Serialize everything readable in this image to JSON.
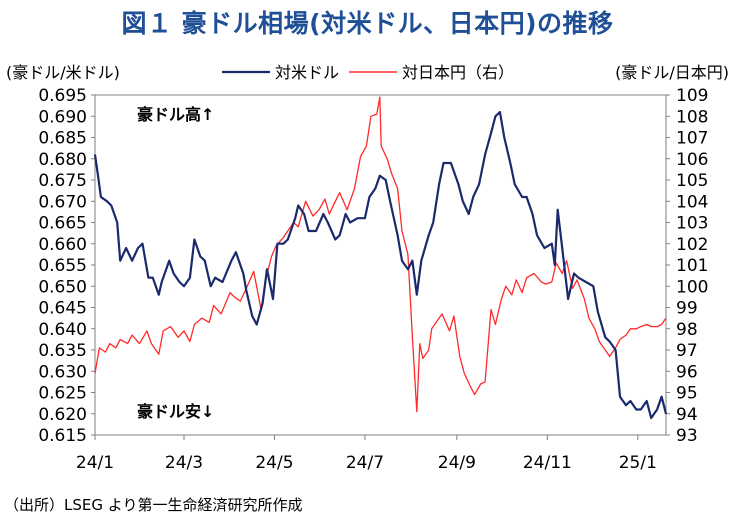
{
  "title": "図１ 豪ドル相場(対米ドル、日本円)の推移",
  "source": "（出所）LSEG より第一生命経済研究所作成",
  "colors": {
    "title": "#1f4f96",
    "usd_series": "#1a2a6c",
    "jpy_series": "#ff2a2a",
    "axis": "#808080"
  },
  "chart_data": {
    "type": "line",
    "title": "図１ 豪ドル相場(対米ドル、日本円)の推移",
    "left_axis_label": "(豪ドル/米ドル)",
    "right_axis_label": "(豪ドル/日本円)",
    "legend_placement": "top",
    "grid": false,
    "x_ticks": [
      "24/1",
      "24/3",
      "24/5",
      "24/7",
      "24/9",
      "24/11",
      "25/1"
    ],
    "x_range": [
      "2024-01-01",
      "2025-01-20"
    ],
    "left_ylim": [
      0.615,
      0.695
    ],
    "left_ticks": [
      "0.695",
      "0.690",
      "0.685",
      "0.680",
      "0.675",
      "0.670",
      "0.665",
      "0.660",
      "0.655",
      "0.650",
      "0.645",
      "0.640",
      "0.635",
      "0.630",
      "0.625",
      "0.620",
      "0.615"
    ],
    "right_ylim": [
      93,
      109
    ],
    "right_ticks": [
      "109",
      "108",
      "107",
      "106",
      "105",
      "104",
      "103",
      "102",
      "101",
      "100",
      "99",
      "98",
      "97",
      "96",
      "95",
      "94",
      "93"
    ],
    "annotations": {
      "top": "豪ドル高↑",
      "bottom": "豪ドル安↓"
    },
    "series": [
      {
        "name": "対米ドル",
        "axis": "left",
        "points": [
          [
            "2024-01-01",
            0.681
          ],
          [
            "2024-01-03",
            0.676
          ],
          [
            "2024-01-05",
            0.671
          ],
          [
            "2024-01-09",
            0.67
          ],
          [
            "2024-01-12",
            0.669
          ],
          [
            "2024-01-16",
            0.665
          ],
          [
            "2024-01-18",
            0.656
          ],
          [
            "2024-01-22",
            0.659
          ],
          [
            "2024-01-26",
            0.656
          ],
          [
            "2024-01-30",
            0.659
          ],
          [
            "2024-02-02",
            0.66
          ],
          [
            "2024-02-06",
            0.652
          ],
          [
            "2024-02-09",
            0.652
          ],
          [
            "2024-02-13",
            0.648
          ],
          [
            "2024-02-15",
            0.651
          ],
          [
            "2024-02-20",
            0.656
          ],
          [
            "2024-02-23",
            0.653
          ],
          [
            "2024-02-27",
            0.651
          ],
          [
            "2024-03-01",
            0.65
          ],
          [
            "2024-03-05",
            0.652
          ],
          [
            "2024-03-08",
            0.661
          ],
          [
            "2024-03-12",
            0.657
          ],
          [
            "2024-03-15",
            0.656
          ],
          [
            "2024-03-19",
            0.65
          ],
          [
            "2024-03-22",
            0.652
          ],
          [
            "2024-03-27",
            0.651
          ],
          [
            "2024-04-02",
            0.656
          ],
          [
            "2024-04-05",
            0.658
          ],
          [
            "2024-04-10",
            0.653
          ],
          [
            "2024-04-12",
            0.649
          ],
          [
            "2024-04-16",
            0.643
          ],
          [
            "2024-04-19",
            0.641
          ],
          [
            "2024-04-23",
            0.646
          ],
          [
            "2024-04-26",
            0.654
          ],
          [
            "2024-04-30",
            0.647
          ],
          [
            "2024-05-03",
            0.66
          ],
          [
            "2024-05-07",
            0.66
          ],
          [
            "2024-05-10",
            0.661
          ],
          [
            "2024-05-15",
            0.666
          ],
          [
            "2024-05-17",
            0.669
          ],
          [
            "2024-05-21",
            0.667
          ],
          [
            "2024-05-24",
            0.663
          ],
          [
            "2024-05-29",
            0.663
          ],
          [
            "2024-06-03",
            0.667
          ],
          [
            "2024-06-06",
            0.665
          ],
          [
            "2024-06-11",
            0.661
          ],
          [
            "2024-06-14",
            0.662
          ],
          [
            "2024-06-18",
            0.667
          ],
          [
            "2024-06-21",
            0.665
          ],
          [
            "2024-06-26",
            0.666
          ],
          [
            "2024-07-01",
            0.666
          ],
          [
            "2024-07-04",
            0.671
          ],
          [
            "2024-07-08",
            0.673
          ],
          [
            "2024-07-11",
            0.676
          ],
          [
            "2024-07-15",
            0.675
          ],
          [
            "2024-07-18",
            0.67
          ],
          [
            "2024-07-23",
            0.662
          ],
          [
            "2024-07-26",
            0.656
          ],
          [
            "2024-07-30",
            0.654
          ],
          [
            "2024-08-02",
            0.656
          ],
          [
            "2024-08-05",
            0.648
          ],
          [
            "2024-08-08",
            0.656
          ],
          [
            "2024-08-13",
            0.662
          ],
          [
            "2024-08-16",
            0.665
          ],
          [
            "2024-08-20",
            0.674
          ],
          [
            "2024-08-23",
            0.679
          ],
          [
            "2024-08-28",
            0.679
          ],
          [
            "2024-09-02",
            0.674
          ],
          [
            "2024-09-05",
            0.67
          ],
          [
            "2024-09-09",
            0.667
          ],
          [
            "2024-09-12",
            0.671
          ],
          [
            "2024-09-16",
            0.674
          ],
          [
            "2024-09-20",
            0.681
          ],
          [
            "2024-09-24",
            0.686
          ],
          [
            "2024-09-27",
            0.69
          ],
          [
            "2024-09-30",
            0.691
          ],
          [
            "2024-10-03",
            0.685
          ],
          [
            "2024-10-07",
            0.679
          ],
          [
            "2024-10-10",
            0.674
          ],
          [
            "2024-10-15",
            0.671
          ],
          [
            "2024-10-18",
            0.671
          ],
          [
            "2024-10-22",
            0.667
          ],
          [
            "2024-10-25",
            0.662
          ],
          [
            "2024-10-30",
            0.659
          ],
          [
            "2024-11-04",
            0.66
          ],
          [
            "2024-11-06",
            0.655
          ],
          [
            "2024-11-08",
            0.668
          ],
          [
            "2024-11-12",
            0.656
          ],
          [
            "2024-11-15",
            0.647
          ],
          [
            "2024-11-19",
            0.653
          ],
          [
            "2024-11-22",
            0.652
          ],
          [
            "2024-11-27",
            0.651
          ],
          [
            "2024-12-02",
            0.65
          ],
          [
            "2024-12-05",
            0.644
          ],
          [
            "2024-12-10",
            0.638
          ],
          [
            "2024-12-13",
            0.637
          ],
          [
            "2024-12-17",
            0.635
          ],
          [
            "2024-12-20",
            0.624
          ],
          [
            "2024-12-24",
            0.622
          ],
          [
            "2024-12-27",
            0.623
          ],
          [
            "2024-12-31",
            0.621
          ],
          [
            "2025-01-03",
            0.621
          ],
          [
            "2025-01-07",
            0.623
          ],
          [
            "2025-01-10",
            0.619
          ],
          [
            "2025-01-14",
            0.621
          ],
          [
            "2025-01-17",
            0.624
          ],
          [
            "2025-01-20",
            0.62
          ]
        ]
      },
      {
        "name": "対日本円（右）",
        "axis": "right",
        "points": [
          [
            "2024-01-01",
            95.9
          ],
          [
            "2024-01-04",
            97.1
          ],
          [
            "2024-01-08",
            96.9
          ],
          [
            "2024-01-11",
            97.3
          ],
          [
            "2024-01-15",
            97.1
          ],
          [
            "2024-01-18",
            97.5
          ],
          [
            "2024-01-23",
            97.3
          ],
          [
            "2024-01-26",
            97.7
          ],
          [
            "2024-01-31",
            97.3
          ],
          [
            "2024-02-05",
            97.9
          ],
          [
            "2024-02-08",
            97.3
          ],
          [
            "2024-02-13",
            96.8
          ],
          [
            "2024-02-16",
            97.9
          ],
          [
            "2024-02-21",
            98.1
          ],
          [
            "2024-02-26",
            97.6
          ],
          [
            "2024-03-01",
            97.9
          ],
          [
            "2024-03-05",
            97.4
          ],
          [
            "2024-03-08",
            98.2
          ],
          [
            "2024-03-13",
            98.5
          ],
          [
            "2024-03-18",
            98.3
          ],
          [
            "2024-03-21",
            99.1
          ],
          [
            "2024-03-26",
            98.7
          ],
          [
            "2024-04-01",
            99.7
          ],
          [
            "2024-04-04",
            99.5
          ],
          [
            "2024-04-08",
            99.3
          ],
          [
            "2024-04-12",
            99.9
          ],
          [
            "2024-04-17",
            100.7
          ],
          [
            "2024-04-22",
            98.9
          ],
          [
            "2024-04-25",
            100.3
          ],
          [
            "2024-04-29",
            101.4
          ],
          [
            "2024-05-02",
            101.9
          ],
          [
            "2024-05-07",
            102.3
          ],
          [
            "2024-05-10",
            102.6
          ],
          [
            "2024-05-14",
            103.0
          ],
          [
            "2024-05-17",
            102.8
          ],
          [
            "2024-05-22",
            104.0
          ],
          [
            "2024-05-27",
            103.3
          ],
          [
            "2024-05-31",
            103.6
          ],
          [
            "2024-06-04",
            104.1
          ],
          [
            "2024-06-07",
            103.4
          ],
          [
            "2024-06-11",
            104.0
          ],
          [
            "2024-06-14",
            104.4
          ],
          [
            "2024-06-19",
            103.6
          ],
          [
            "2024-06-24",
            104.6
          ],
          [
            "2024-06-28",
            106.1
          ],
          [
            "2024-07-02",
            106.6
          ],
          [
            "2024-07-05",
            108.0
          ],
          [
            "2024-07-09",
            108.1
          ],
          [
            "2024-07-11",
            108.9
          ],
          [
            "2024-07-12",
            106.6
          ],
          [
            "2024-07-16",
            106.0
          ],
          [
            "2024-07-19",
            105.3
          ],
          [
            "2024-07-23",
            104.6
          ],
          [
            "2024-07-26",
            102.6
          ],
          [
            "2024-07-30",
            101.5
          ],
          [
            "2024-08-02",
            97.6
          ],
          [
            "2024-08-05",
            94.1
          ],
          [
            "2024-08-07",
            97.3
          ],
          [
            "2024-08-09",
            96.6
          ],
          [
            "2024-08-13",
            97.0
          ],
          [
            "2024-08-15",
            98.0
          ],
          [
            "2024-08-19",
            98.4
          ],
          [
            "2024-08-22",
            98.7
          ],
          [
            "2024-08-27",
            97.9
          ],
          [
            "2024-08-30",
            98.6
          ],
          [
            "2024-09-03",
            96.7
          ],
          [
            "2024-09-06",
            95.9
          ],
          [
            "2024-09-10",
            95.3
          ],
          [
            "2024-09-13",
            94.9
          ],
          [
            "2024-09-17",
            95.4
          ],
          [
            "2024-09-20",
            95.5
          ],
          [
            "2024-09-24",
            98.9
          ],
          [
            "2024-09-27",
            98.2
          ],
          [
            "2024-10-01",
            99.4
          ],
          [
            "2024-10-04",
            100.0
          ],
          [
            "2024-10-08",
            99.6
          ],
          [
            "2024-10-11",
            100.3
          ],
          [
            "2024-10-15",
            99.7
          ],
          [
            "2024-10-18",
            100.4
          ],
          [
            "2024-10-23",
            100.6
          ],
          [
            "2024-10-28",
            100.2
          ],
          [
            "2024-10-31",
            100.1
          ],
          [
            "2024-11-04",
            100.2
          ],
          [
            "2024-11-07",
            101.1
          ],
          [
            "2024-11-11",
            100.6
          ],
          [
            "2024-11-14",
            101.2
          ],
          [
            "2024-11-18",
            99.9
          ],
          [
            "2024-11-21",
            100.3
          ],
          [
            "2024-11-26",
            99.4
          ],
          [
            "2024-11-29",
            98.5
          ],
          [
            "2024-12-03",
            98.0
          ],
          [
            "2024-12-06",
            97.4
          ],
          [
            "2024-12-10",
            97.0
          ],
          [
            "2024-12-13",
            96.7
          ],
          [
            "2024-12-17",
            97.1
          ],
          [
            "2024-12-20",
            97.5
          ],
          [
            "2024-12-24",
            97.7
          ],
          [
            "2024-12-27",
            98.0
          ],
          [
            "2024-12-31",
            98.0
          ],
          [
            "2025-01-03",
            98.1
          ],
          [
            "2025-01-07",
            98.2
          ],
          [
            "2025-01-10",
            98.1
          ],
          [
            "2025-01-14",
            98.1
          ],
          [
            "2025-01-17",
            98.2
          ],
          [
            "2025-01-20",
            98.5
          ]
        ]
      }
    ]
  }
}
